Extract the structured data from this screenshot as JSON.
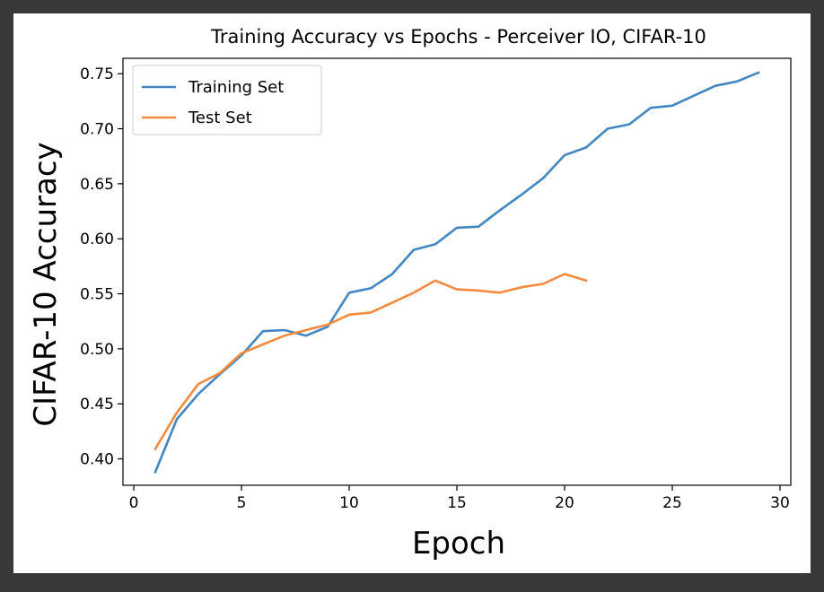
{
  "chart_data": {
    "type": "line",
    "title": "Training Accuracy vs Epochs - Perceiver IO, CIFAR-10",
    "xlabel": "Epoch",
    "ylabel": "CIFAR-10 Accuracy",
    "xlim": [
      -0.5,
      30.5
    ],
    "ylim": [
      0.376,
      0.764
    ],
    "xticks": [
      0,
      5,
      10,
      15,
      20,
      25,
      30
    ],
    "yticks": [
      0.4,
      0.45,
      0.5,
      0.55,
      0.6,
      0.65,
      0.7,
      0.75
    ],
    "ytick_labels": [
      "0.40",
      "0.45",
      "0.50",
      "0.55",
      "0.60",
      "0.65",
      "0.70",
      "0.75"
    ],
    "grid": false,
    "legend_position": "top-left",
    "series": [
      {
        "name": "Training Set",
        "color": "#4287c1",
        "x": [
          1,
          2,
          3,
          4,
          5,
          6,
          7,
          8,
          9,
          10,
          11,
          12,
          13,
          14,
          15,
          16,
          17,
          18,
          19,
          20,
          21,
          22,
          23,
          24,
          25,
          26,
          27,
          28,
          29
        ],
        "y": [
          0.388,
          0.436,
          0.459,
          0.477,
          0.494,
          0.516,
          0.517,
          0.512,
          0.52,
          0.551,
          0.555,
          0.568,
          0.59,
          0.595,
          0.61,
          0.611,
          0.626,
          0.64,
          0.655,
          0.676,
          0.683,
          0.7,
          0.704,
          0.719,
          0.721,
          0.73,
          0.739,
          0.743,
          0.751
        ]
      },
      {
        "name": "Test Set",
        "color": "#f58a3c",
        "x": [
          1,
          2,
          3,
          4,
          5,
          6,
          7,
          8,
          9,
          10,
          11,
          12,
          13,
          14,
          15,
          16,
          17,
          18,
          19,
          20,
          21
        ],
        "y": [
          0.409,
          0.442,
          0.468,
          0.478,
          0.496,
          0.504,
          0.512,
          0.517,
          0.522,
          0.531,
          0.533,
          0.542,
          0.551,
          0.562,
          0.554,
          0.553,
          0.551,
          0.556,
          0.559,
          0.568,
          0.562
        ]
      }
    ]
  }
}
